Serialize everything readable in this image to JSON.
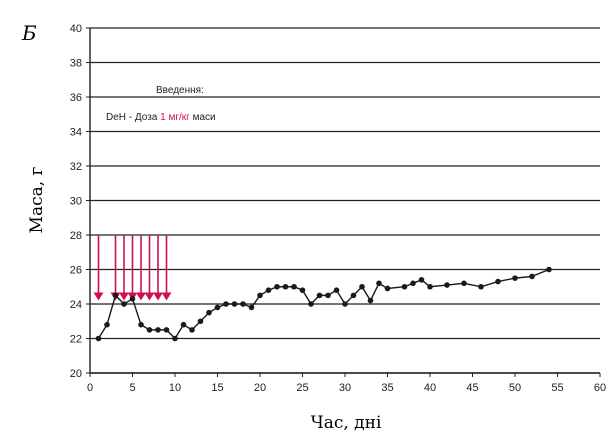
{
  "chart_data": {
    "type": "line",
    "panel_label": "Б",
    "ylabel": "Маса, г",
    "xlabel": "Час, дні",
    "xlim": [
      0,
      60
    ],
    "ylim": [
      20,
      40
    ],
    "xticks": [
      0,
      5,
      10,
      15,
      20,
      25,
      30,
      35,
      40,
      45,
      50,
      55,
      60
    ],
    "yticks": [
      20,
      22,
      24,
      26,
      28,
      30,
      32,
      34,
      36,
      38,
      40
    ],
    "grid": "horizontal",
    "annotation": {
      "title": "Введення:",
      "line_prefix": "DeH - Доза",
      "dose": "1 мг/кг",
      "line_suffix": "маси"
    },
    "series": [
      {
        "color": "#1a1a1a",
        "x": [
          1,
          2,
          3,
          4,
          5,
          6,
          7,
          8,
          9,
          10,
          11,
          12,
          13,
          14,
          15,
          16,
          17,
          18,
          19,
          20,
          21,
          22,
          23,
          24,
          25,
          26,
          27,
          28,
          29,
          30,
          31,
          32,
          33,
          34,
          35,
          37,
          38,
          39,
          40,
          42,
          44,
          46,
          48,
          50,
          52,
          54
        ],
        "values": [
          22,
          22.8,
          24.5,
          24,
          24.3,
          22.8,
          22.5,
          22.5,
          22.5,
          22,
          22.8,
          22.5,
          23,
          23.5,
          23.8,
          24,
          24,
          24,
          23.8,
          24.5,
          24.8,
          25,
          25,
          25,
          24.8,
          24,
          24.5,
          24.5,
          24.8,
          24,
          24.5,
          25,
          24.2,
          25.2,
          24.9,
          25,
          25.2,
          25.4,
          25,
          25.1,
          25.2,
          25,
          25.3,
          25.5,
          25.6,
          26
        ]
      }
    ],
    "dose_markers": {
      "color": "#d0104c",
      "x": [
        1,
        3,
        4,
        5,
        6,
        7,
        8,
        9
      ]
    }
  }
}
